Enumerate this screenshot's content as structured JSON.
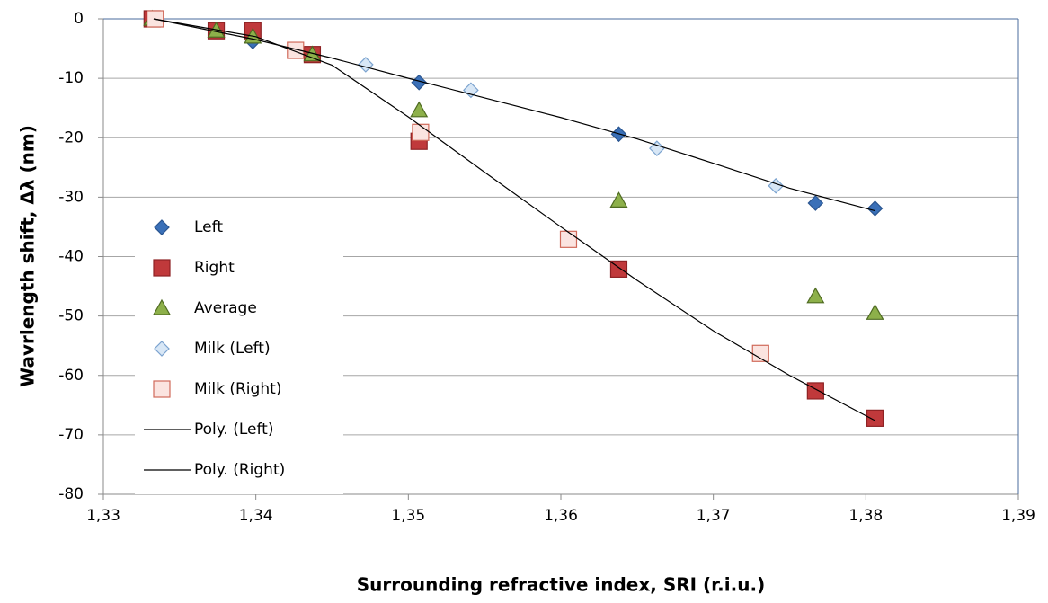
{
  "chart_data": {
    "type": "scatter",
    "ylabel": "Wavrlength shift, Δλ (nm)",
    "xlabel": "Surrounding refractive index, SRI (r.i.u.)",
    "xlim": [
      1.33,
      1.39
    ],
    "xticks": [
      {
        "value": 1.33,
        "label": "1,33"
      },
      {
        "value": 1.34,
        "label": "1,34"
      },
      {
        "value": 1.35,
        "label": "1,35"
      },
      {
        "value": 1.36,
        "label": "1,36"
      },
      {
        "value": 1.37,
        "label": "1,37"
      },
      {
        "value": 1.38,
        "label": "1,38"
      },
      {
        "value": 1.39,
        "label": "1,39"
      }
    ],
    "ylim": [
      -80,
      0
    ],
    "yticks": [
      0,
      -10,
      -20,
      -30,
      -40,
      -50,
      -60,
      -70,
      -80
    ],
    "grid": true,
    "legend": "left",
    "series": [
      {
        "name": "Left",
        "marker": "diamond",
        "color": "#3a70b8",
        "edgecolor": "#2a5590",
        "x": [
          1.3332,
          1.3374,
          1.3398,
          1.3437,
          1.3507,
          1.3638,
          1.3767,
          1.3806
        ],
        "values": [
          0,
          -2,
          -3.8,
          -6,
          -10.7,
          -19.4,
          -31,
          -31.9
        ]
      },
      {
        "name": "Right",
        "marker": "square",
        "color": "#c0393b",
        "edgecolor": "#8e2224",
        "x": [
          1.3332,
          1.3374,
          1.3398,
          1.3437,
          1.3507,
          1.3638,
          1.3767,
          1.3806
        ],
        "values": [
          0,
          -2,
          -2,
          -6,
          -20.6,
          -42.1,
          -62.6,
          -67.2
        ]
      },
      {
        "name": "Average",
        "marker": "triangle",
        "color": "#8db04a",
        "edgecolor": "#4f6b22",
        "x": [
          1.3332,
          1.3374,
          1.3398,
          1.3437,
          1.3507,
          1.3638,
          1.3767,
          1.3806
        ],
        "values": [
          0,
          -2,
          -3,
          -6,
          -15.4,
          -30.6,
          -46.7,
          -49.5
        ]
      },
      {
        "name": "Milk (Left)",
        "marker": "diamond",
        "color": "#d8e7f6",
        "edgecolor": "#7ba3cf",
        "x": [
          1.3472,
          1.3541,
          1.3663,
          1.3741
        ],
        "values": [
          -7.7,
          -12,
          -21.8,
          -28.1
        ]
      },
      {
        "name": "Milk (Right)",
        "marker": "square",
        "color": "#fbe4e0",
        "edgecolor": "#d06a5a",
        "x": [
          1.3334,
          1.3426,
          1.3508,
          1.3605,
          1.3731
        ],
        "values": [
          0,
          -5.3,
          -19.1,
          -37.1,
          -56.3
        ]
      },
      {
        "name": "Poly. (Left)",
        "marker": "line",
        "color": "#000000",
        "x": [
          1.3333,
          1.34,
          1.345,
          1.35,
          1.355,
          1.36,
          1.365,
          1.37,
          1.375,
          1.3806
        ],
        "values": [
          0,
          -3.5,
          -6.6,
          -10,
          -13.3,
          -16.6,
          -20.2,
          -24.3,
          -28.5,
          -32.3
        ]
      },
      {
        "name": "Poly. (Right)",
        "marker": "line",
        "color": "#000000",
        "x": [
          1.3333,
          1.34,
          1.345,
          1.35,
          1.355,
          1.36,
          1.365,
          1.37,
          1.375,
          1.3806
        ],
        "values": [
          0,
          -3,
          -7.8,
          -16.5,
          -25.8,
          -35,
          -44,
          -52.5,
          -60,
          -67.6
        ]
      }
    ]
  }
}
